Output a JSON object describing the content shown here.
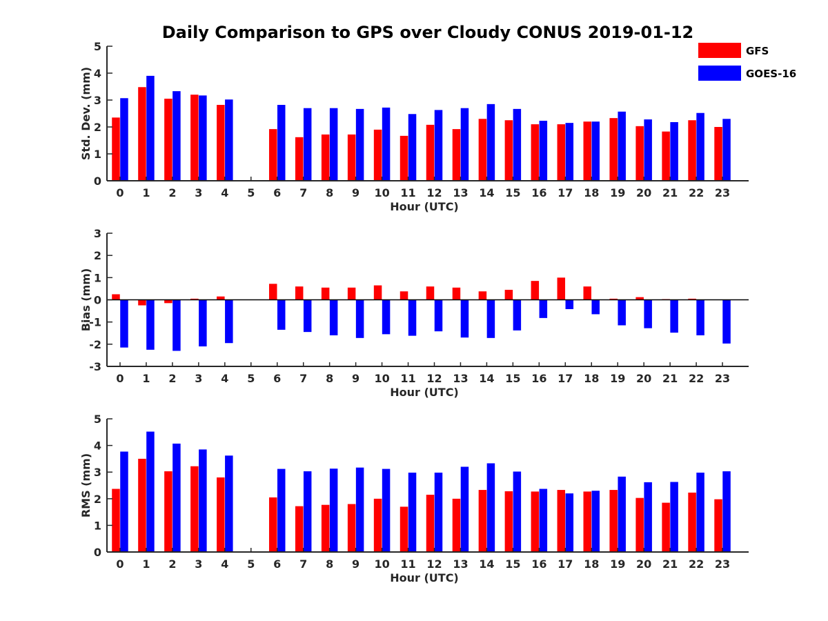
{
  "title": "Daily Comparison to GPS over Cloudy CONUS 2019-01-12",
  "colors": {
    "GFS": "#ff0000",
    "GOES-16": "#0000ff"
  },
  "legend": [
    "GFS",
    "GOES-16"
  ],
  "chart_data": [
    {
      "type": "bar",
      "xlabel": "Hour (UTC)",
      "ylabel": "Std. Dev. (mm)",
      "ylim": [
        0,
        5
      ],
      "yticks": [
        0,
        1,
        2,
        3,
        4,
        5
      ],
      "categories": [
        "0",
        "1",
        "2",
        "3",
        "4",
        "5",
        "6",
        "7",
        "8",
        "9",
        "10",
        "11",
        "12",
        "13",
        "14",
        "15",
        "16",
        "17",
        "18",
        "19",
        "20",
        "21",
        "22",
        "23"
      ],
      "series": [
        {
          "name": "GFS",
          "values": [
            2.35,
            3.48,
            3.05,
            3.2,
            2.82,
            null,
            1.92,
            1.62,
            1.72,
            1.72,
            1.9,
            1.67,
            2.08,
            1.92,
            2.3,
            2.25,
            2.1,
            2.1,
            2.2,
            2.33,
            2.03,
            1.83,
            2.25,
            2.0
          ]
        },
        {
          "name": "GOES-16",
          "values": [
            3.07,
            3.9,
            3.33,
            3.17,
            3.02,
            null,
            2.82,
            2.7,
            2.7,
            2.67,
            2.72,
            2.48,
            2.63,
            2.7,
            2.85,
            2.67,
            2.23,
            2.15,
            2.2,
            2.57,
            2.28,
            2.18,
            2.52,
            2.3
          ]
        }
      ]
    },
    {
      "type": "bar",
      "xlabel": "Hour (UTC)",
      "ylabel": "Bias (mm)",
      "ylim": [
        -3,
        3
      ],
      "yticks": [
        -3,
        -2,
        -1,
        0,
        1,
        2,
        3
      ],
      "categories": [
        "0",
        "1",
        "2",
        "3",
        "4",
        "5",
        "6",
        "7",
        "8",
        "9",
        "10",
        "11",
        "12",
        "13",
        "14",
        "15",
        "16",
        "17",
        "18",
        "19",
        "20",
        "21",
        "22",
        "23"
      ],
      "series": [
        {
          "name": "GFS",
          "values": [
            0.25,
            -0.25,
            -0.15,
            0.05,
            0.15,
            null,
            0.72,
            0.6,
            0.55,
            0.55,
            0.65,
            0.38,
            0.6,
            0.55,
            0.38,
            0.45,
            0.85,
            1.0,
            0.6,
            0.05,
            0.12,
            0.03,
            0.05,
            0.0
          ]
        },
        {
          "name": "GOES-16",
          "values": [
            -2.15,
            -2.25,
            -2.3,
            -2.1,
            -1.95,
            null,
            -1.35,
            -1.45,
            -1.6,
            -1.72,
            -1.55,
            -1.62,
            -1.42,
            -1.7,
            -1.72,
            -1.38,
            -0.82,
            -0.42,
            -0.65,
            -1.15,
            -1.28,
            -1.48,
            -1.6,
            -1.97
          ]
        }
      ]
    },
    {
      "type": "bar",
      "xlabel": "Hour (UTC)",
      "ylabel": "RMS (mm)",
      "ylim": [
        0,
        5
      ],
      "yticks": [
        0,
        1,
        2,
        3,
        4,
        5
      ],
      "categories": [
        "0",
        "1",
        "2",
        "3",
        "4",
        "5",
        "6",
        "7",
        "8",
        "9",
        "10",
        "11",
        "12",
        "13",
        "14",
        "15",
        "16",
        "17",
        "18",
        "19",
        "20",
        "21",
        "22",
        "23"
      ],
      "series": [
        {
          "name": "GFS",
          "values": [
            2.37,
            3.5,
            3.03,
            3.22,
            2.8,
            null,
            2.05,
            1.72,
            1.77,
            1.8,
            2.0,
            1.7,
            2.15,
            2.0,
            2.33,
            2.28,
            2.27,
            2.33,
            2.27,
            2.33,
            2.03,
            1.85,
            2.23,
            1.98
          ]
        },
        {
          "name": "GOES-16",
          "values": [
            3.77,
            4.52,
            4.07,
            3.85,
            3.62,
            null,
            3.12,
            3.03,
            3.13,
            3.17,
            3.12,
            2.98,
            2.98,
            3.2,
            3.33,
            3.02,
            2.37,
            2.2,
            2.3,
            2.83,
            2.62,
            2.63,
            2.98,
            3.03
          ]
        }
      ]
    }
  ]
}
